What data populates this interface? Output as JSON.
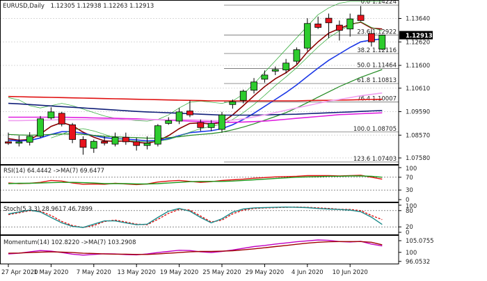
{
  "colors": {
    "bull": "#2ecc2e",
    "bear": "#e8141e",
    "ma_darkred": "#8b0000",
    "ma_blue": "#1a37e6",
    "ma_green": "#228b22",
    "ma_lightgreen": "#3cb043",
    "ma_red": "#e01010",
    "ma_navy": "#101e78",
    "ma_magenta": "#e020e0",
    "ma_pink": "#f0a0f0",
    "osc_teal": "#1a8a8a",
    "osc_red": "#e01010",
    "osc_darkred": "#a00000",
    "osc_green": "#1a9a1a",
    "osc_magenta": "#c000c0"
  },
  "header": {
    "symbol": "EURUSD,Daily",
    "ohlc": "1.12305 1.12938 1.12263 1.12913"
  },
  "chart_data": [
    {
      "type": "candlestick",
      "title": "EURUSD,Daily",
      "ylim": [
        1.0734,
        1.1438
      ],
      "y_ticks": [
        "1.13640",
        "1.12620",
        "1.11600",
        "1.10610",
        "1.09590",
        "1.08570",
        "1.07580"
      ],
      "y_tick_values": [
        1.1364,
        1.1262,
        1.116,
        1.1061,
        1.0959,
        1.0857,
        1.0758
      ],
      "last_price": "1.12913",
      "last_price_value": 1.12913,
      "x_labels": [
        "27 Apr 2020",
        "1 May 2020",
        "7 May 2020",
        "13 May 2020",
        "19 May 2020",
        "25 May 2020",
        "29 May 2020",
        "4 Jun 2020",
        "10 Jun 2020"
      ],
      "x_label_index": [
        0,
        4,
        8,
        12,
        16,
        20,
        24,
        28,
        32
      ],
      "candles": [
        {
          "o": 1.0828,
          "h": 1.0868,
          "l": 1.0815,
          "c": 1.0822
        },
        {
          "o": 1.0822,
          "h": 1.0855,
          "l": 1.0808,
          "c": 1.0828
        },
        {
          "o": 1.0826,
          "h": 1.087,
          "l": 1.0812,
          "c": 1.0852
        },
        {
          "o": 1.0852,
          "h": 1.094,
          "l": 1.0845,
          "c": 1.0928
        },
        {
          "o": 1.0932,
          "h": 1.0978,
          "l": 1.0925,
          "c": 1.0958
        },
        {
          "o": 1.0952,
          "h": 1.0958,
          "l": 1.0895,
          "c": 1.0905
        },
        {
          "o": 1.0902,
          "h": 1.091,
          "l": 1.0822,
          "c": 1.0838
        },
        {
          "o": 1.0838,
          "h": 1.0852,
          "l": 1.0772,
          "c": 1.0804
        },
        {
          "o": 1.08,
          "h": 1.0838,
          "l": 1.078,
          "c": 1.083
        },
        {
          "o": 1.083,
          "h": 1.0852,
          "l": 1.0812,
          "c": 1.0822
        },
        {
          "o": 1.0818,
          "h": 1.0868,
          "l": 1.0808,
          "c": 1.0848
        },
        {
          "o": 1.0848,
          "h": 1.0868,
          "l": 1.0815,
          "c": 1.0828
        },
        {
          "o": 1.0828,
          "h": 1.0845,
          "l": 1.079,
          "c": 1.0812
        },
        {
          "o": 1.0812,
          "h": 1.0852,
          "l": 1.0795,
          "c": 1.0822
        },
        {
          "o": 1.0818,
          "h": 1.0905,
          "l": 1.0808,
          "c": 1.0898
        },
        {
          "o": 1.0908,
          "h": 1.0935,
          "l": 1.0902,
          "c": 1.092
        },
        {
          "o": 1.0918,
          "h": 1.0975,
          "l": 1.0905,
          "c": 1.0958
        },
        {
          "o": 1.0962,
          "h": 1.1008,
          "l": 1.0935,
          "c": 1.0945
        },
        {
          "o": 1.0912,
          "h": 1.0925,
          "l": 1.0875,
          "c": 1.089
        },
        {
          "o": 1.089,
          "h": 1.0922,
          "l": 1.0875,
          "c": 1.0908
        },
        {
          "o": 1.0882,
          "h": 1.0958,
          "l": 1.0868,
          "c": 1.0945
        },
        {
          "o": 1.099,
          "h": 1.1012,
          "l": 1.0972,
          "c": 1.1002
        },
        {
          "o": 1.1008,
          "h": 1.1055,
          "l": 1.0995,
          "c": 1.1048
        },
        {
          "o": 1.1052,
          "h": 1.1105,
          "l": 1.1038,
          "c": 1.1088
        },
        {
          "o": 1.11,
          "h": 1.1138,
          "l": 1.1085,
          "c": 1.1118
        },
        {
          "o": 1.1135,
          "h": 1.1155,
          "l": 1.1118,
          "c": 1.1142
        },
        {
          "o": 1.114,
          "h": 1.1188,
          "l": 1.1125,
          "c": 1.117
        },
        {
          "o": 1.1178,
          "h": 1.1238,
          "l": 1.1165,
          "c": 1.1228
        },
        {
          "o": 1.1235,
          "h": 1.1365,
          "l": 1.1222,
          "c": 1.1342
        },
        {
          "o": 1.134,
          "h": 1.1372,
          "l": 1.1318,
          "c": 1.1325
        },
        {
          "o": 1.1365,
          "h": 1.1385,
          "l": 1.1278,
          "c": 1.1345
        },
        {
          "o": 1.1335,
          "h": 1.1355,
          "l": 1.1268,
          "c": 1.1312
        },
        {
          "o": 1.1318,
          "h": 1.1385,
          "l": 1.1285,
          "c": 1.1362
        },
        {
          "o": 1.1378,
          "h": 1.1418,
          "l": 1.1352,
          "c": 1.1355
        },
        {
          "o": 1.1298,
          "h": 1.1318,
          "l": 1.1242,
          "c": 1.1262
        },
        {
          "o": 1.12305,
          "h": 1.12938,
          "l": 1.12263,
          "c": 1.12913
        }
      ],
      "moving_averages": [
        {
          "color": "ma_darkred",
          "width": 1.6,
          "values": [
            1.0842,
            1.0835,
            1.0838,
            1.0862,
            1.0895,
            1.0912,
            1.0898,
            1.087,
            1.0848,
            1.0832,
            1.083,
            1.0832,
            1.0826,
            1.0822,
            1.0832,
            1.0855,
            1.0885,
            1.0908,
            1.091,
            1.0905,
            1.0912,
            1.0945,
            1.0985,
            1.1028,
            1.1068,
            1.1102,
            1.1128,
            1.1162,
            1.1218,
            1.1262,
            1.13,
            1.132,
            1.1338,
            1.1348,
            1.1322,
            1.1318
          ]
        },
        {
          "color": "ma_blue",
          "width": 1.6,
          "values": [
            1.0835,
            1.0832,
            1.0834,
            1.0845,
            1.086,
            1.0872,
            1.0872,
            1.0865,
            1.0855,
            1.0846,
            1.0842,
            1.084,
            1.0836,
            1.0832,
            1.0834,
            1.0842,
            1.0855,
            1.0868,
            1.0872,
            1.0876,
            1.0885,
            1.0902,
            1.0925,
            1.0952,
            1.0982,
            1.1012,
            1.1042,
            1.1075,
            1.1112,
            1.1148,
            1.1182,
            1.121,
            1.1238,
            1.1262,
            1.127,
            1.1275
          ]
        },
        {
          "color": "ma_green",
          "width": 1.2,
          "values": [
            1.086,
            1.0858,
            1.0857,
            1.0858,
            1.086,
            1.0862,
            1.0862,
            1.086,
            1.0856,
            1.0852,
            1.085,
            1.0848,
            1.0846,
            1.0844,
            1.0844,
            1.0846,
            1.085,
            1.0856,
            1.086,
            1.0864,
            1.087,
            1.088,
            1.0892,
            1.0906,
            1.0922,
            1.0938,
            1.0955,
            1.0975,
            1.0998,
            1.1022,
            1.1045,
            1.1068,
            1.1088,
            1.1108,
            1.1125,
            1.1142
          ]
        },
        {
          "color": "ma_lightgreen",
          "width": 0.8,
          "values": [
            1.0795,
            null,
            null,
            null,
            1.0845,
            1.086,
            1.088,
            1.0885,
            1.0875,
            1.086,
            1.0845,
            1.0835,
            1.083,
            1.0828,
            1.083,
            1.0838,
            1.0852,
            1.087,
            1.0885,
            1.0895,
            1.0905,
            1.0925,
            1.0955,
            1.099,
            1.103,
            1.1072,
            1.111,
            1.115,
            1.1195,
            1.124,
            1.128,
            1.131,
            1.1335,
            1.135,
            1.1325,
            1.131
          ]
        },
        {
          "color": "ma_lightgreen",
          "width": 0.8,
          "values": [
            1.102,
            1.101,
            1.0985,
            1.0975,
            1.0985,
            1.0995,
            1.0985,
            1.097,
            1.0955,
            1.094,
            1.093,
            1.0925,
            1.092,
            1.0918,
            1.0925,
            1.0945,
            1.0975,
            1.1,
            1.1005,
            1.1,
            1.0995,
            1.1005,
            1.1035,
            1.108,
            1.113,
            1.118,
            1.123,
            1.128,
            1.133,
            1.138,
            1.141,
            1.143,
            1.1438,
            1.1438,
            1.1438,
            1.1438
          ]
        },
        {
          "color": "ma_red",
          "width": 1.6,
          "values": [
            1.1025,
            1.1024,
            1.1023,
            1.1022,
            1.1021,
            1.102,
            1.1019,
            1.1018,
            1.1017,
            1.1016,
            1.1015,
            1.1014,
            1.1013,
            1.1012,
            1.1011,
            1.101,
            1.1009,
            1.1008,
            1.1007,
            1.1006,
            1.1006,
            1.1006,
            1.1006,
            1.1006,
            1.1006,
            1.1006,
            1.1006,
            1.1006,
            1.1007,
            1.1008,
            1.1008,
            1.1009,
            1.101,
            1.1011,
            1.1012,
            1.1013
          ]
        },
        {
          "color": "ma_navy",
          "width": 1.6,
          "values": [
            1.0995,
            1.0993,
            1.099,
            1.0987,
            1.0984,
            1.0981,
            1.0978,
            1.0975,
            1.0972,
            1.0969,
            1.0966,
            1.0963,
            1.096,
            1.0958,
            1.0956,
            1.0954,
            1.0952,
            1.095,
            1.0948,
            1.0946,
            1.0944,
            1.0944,
            1.0944,
            1.0944,
            1.0945,
            1.0946,
            1.0947,
            1.0948,
            1.095,
            1.0952,
            1.0954,
            1.0956,
            1.0958,
            1.096,
            1.0962,
            1.0964
          ]
        },
        {
          "color": "ma_magenta",
          "width": 1.6,
          "values": [
            1.0935,
            1.0935,
            1.0935,
            1.0935,
            1.0935,
            1.0935,
            1.0934,
            1.0933,
            1.0932,
            1.0931,
            1.093,
            1.0929,
            1.0928,
            1.0926,
            1.0924,
            1.0922,
            1.092,
            1.0918,
            1.0916,
            1.0914,
            1.0913,
            1.0913,
            1.0914,
            1.0916,
            1.0918,
            1.0922,
            1.0926,
            1.093,
            1.0934,
            1.0938,
            1.0942,
            1.0946,
            1.0948,
            1.095,
            1.0952,
            1.0954
          ]
        },
        {
          "color": "ma_pink",
          "width": 1.6,
          "values": [
            1.092,
            1.092,
            1.0921,
            1.0922,
            1.0923,
            1.0924,
            1.0924,
            1.0924,
            1.0924,
            1.0924,
            1.0924,
            1.0924,
            1.0924,
            1.0924,
            1.0924,
            1.0924,
            1.0924,
            1.0924,
            1.0922,
            1.092,
            1.092,
            1.0922,
            1.0928,
            1.0936,
            1.0945,
            1.0955,
            1.0965,
            1.0975,
            1.0985,
            1.0995,
            1.1005,
            1.1012,
            1.102,
            1.1028,
            1.1034,
            1.104
          ]
        }
      ],
      "fibonacci": [
        {
          "label": "0.0 1.14224",
          "value": 1.14224
        },
        {
          "label": "23.6 1.12922",
          "value": 1.12922
        },
        {
          "label": "38.2 1.12116",
          "value": 1.12116
        },
        {
          "label": "50.0 1.11464",
          "value": 1.11464
        },
        {
          "label": "61.8 1.10813",
          "value": 1.10813
        },
        {
          "label": "76.4 1.10007",
          "value": 1.10007
        },
        {
          "label": "100.0 1.08705",
          "value": 1.08705
        },
        {
          "label": "123.6 1.07403",
          "value": 1.07403
        }
      ]
    },
    {
      "type": "line",
      "title": "RSI(14) 64.4442 ->MA(7) 69.6477",
      "ylim": [
        0,
        100
      ],
      "levels": [
        70,
        30
      ],
      "y_ticks": [
        "100",
        "70",
        "30",
        "0"
      ],
      "y_tick_values": [
        100,
        70,
        30,
        0
      ],
      "series": [
        {
          "color": "osc_red",
          "values": [
            52,
            50,
            51,
            54,
            60,
            58,
            52,
            48,
            49,
            48,
            51,
            49,
            47,
            49,
            55,
            58,
            60,
            57,
            54,
            56,
            60,
            62,
            64,
            67,
            69,
            71,
            72,
            73,
            75,
            75,
            75,
            74,
            75,
            76,
            70,
            64
          ]
        },
        {
          "color": "osc_green",
          "values": [
            50,
            51,
            51,
            52,
            53,
            54,
            54,
            53,
            52,
            50,
            50,
            50,
            49,
            49,
            50,
            52,
            54,
            56,
            57,
            57,
            57,
            58,
            60,
            62,
            64,
            66,
            68,
            70,
            71,
            72,
            73,
            73,
            74,
            74,
            73,
            70
          ]
        }
      ]
    },
    {
      "type": "line",
      "title": "Stoch(5,3,3) 28.9617 46.7899",
      "ylim": [
        0,
        100
      ],
      "levels": [
        80,
        20
      ],
      "y_ticks": [
        "100",
        "80",
        "20",
        "0"
      ],
      "y_tick_values": [
        100,
        80,
        20,
        0
      ],
      "series": [
        {
          "color": "osc_red",
          "dash": true,
          "values": [
            65,
            72,
            80,
            78,
            62,
            40,
            25,
            18,
            25,
            40,
            45,
            38,
            30,
            28,
            48,
            70,
            85,
            82,
            60,
            38,
            45,
            68,
            82,
            88,
            90,
            91,
            92,
            93,
            92,
            90,
            88,
            85,
            84,
            80,
            62,
            47
          ]
        },
        {
          "color": "osc_teal",
          "values": [
            68,
            75,
            82,
            75,
            55,
            35,
            22,
            18,
            30,
            42,
            42,
            35,
            28,
            30,
            55,
            78,
            88,
            78,
            55,
            35,
            50,
            74,
            86,
            90,
            91,
            92,
            93,
            92,
            91,
            88,
            86,
            84,
            82,
            76,
            56,
            29
          ]
        }
      ]
    },
    {
      "type": "line",
      "title": "Momentum(14) 102.8220 ->MA(7) 103.2908",
      "ylim": [
        96.0,
        106.3
      ],
      "y_ticks": [
        "105.0755",
        "100",
        "96.0532"
      ],
      "y_tick_values": [
        105.0755,
        100,
        96.0532
      ],
      "series": [
        {
          "color": "osc_magenta",
          "values": [
            99.3,
            99.6,
            100.2,
            100.8,
            100.5,
            99.9,
            99.2,
            98.8,
            99.1,
            99.4,
            99.3,
            99.0,
            98.9,
            99.3,
            99.9,
            100.4,
            100.9,
            100.8,
            100.2,
            99.9,
            100.4,
            101.0,
            101.8,
            102.5,
            103.0,
            103.6,
            104.1,
            104.6,
            105.0,
            105.4,
            105.2,
            104.7,
            104.5,
            104.8,
            103.6,
            102.8
          ]
        },
        {
          "color": "osc_darkred",
          "values": [
            99.6,
            99.7,
            99.9,
            100.1,
            100.2,
            100.1,
            99.9,
            99.6,
            99.5,
            99.3,
            99.2,
            99.2,
            99.1,
            99.1,
            99.3,
            99.6,
            99.9,
            100.2,
            100.4,
            100.4,
            100.5,
            100.7,
            101.1,
            101.5,
            102.0,
            102.5,
            103.0,
            103.5,
            104.0,
            104.4,
            104.6,
            104.7,
            104.7,
            104.7,
            104.4,
            103.3
          ]
        }
      ]
    }
  ]
}
